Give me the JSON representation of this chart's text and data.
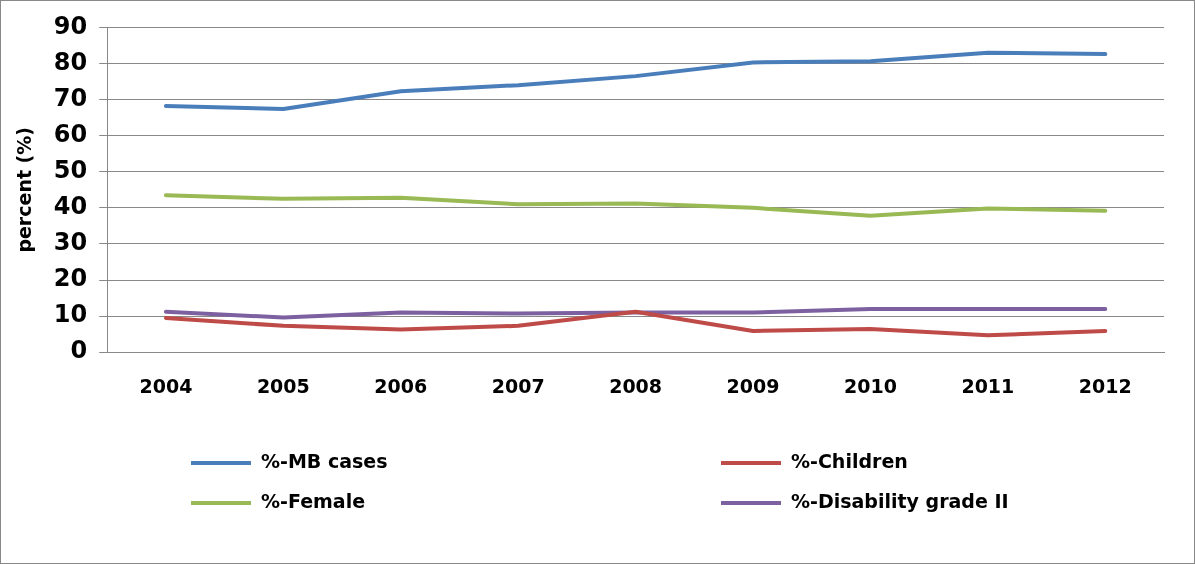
{
  "chart_data": {
    "type": "line",
    "ylabel": "percent (%)",
    "categories": [
      "2004",
      "2005",
      "2006",
      "2007",
      "2008",
      "2009",
      "2010",
      "2011",
      "2012"
    ],
    "series": [
      {
        "name": "%-MB cases",
        "color": "#4a7ebb",
        "values": [
          68.2,
          67.4,
          72.3,
          74,
          76.5,
          80.3,
          80.6,
          83,
          82.6
        ]
      },
      {
        "name": "%-Children",
        "color": "#be4b48",
        "values": [
          9.5,
          7.3,
          6.3,
          7.3,
          11.2,
          5.9,
          6.4,
          4.7,
          5.9
        ]
      },
      {
        "name": "%-Female",
        "color": "#98b954",
        "values": [
          43.5,
          42.5,
          42.8,
          41,
          41.2,
          40,
          37.8,
          39.8,
          39.2
        ]
      },
      {
        "name": "%-Disability grade II",
        "color": "#7d60a0",
        "values": [
          11.2,
          9.6,
          11,
          10.7,
          11,
          11,
          12,
          12,
          12
        ]
      }
    ],
    "ylim": [
      0,
      90
    ],
    "yticks": [
      0,
      10,
      20,
      30,
      40,
      50,
      60,
      70,
      80,
      90
    ],
    "grid": "y",
    "legend": "bottom",
    "marker": "none",
    "line_style": "solid"
  }
}
